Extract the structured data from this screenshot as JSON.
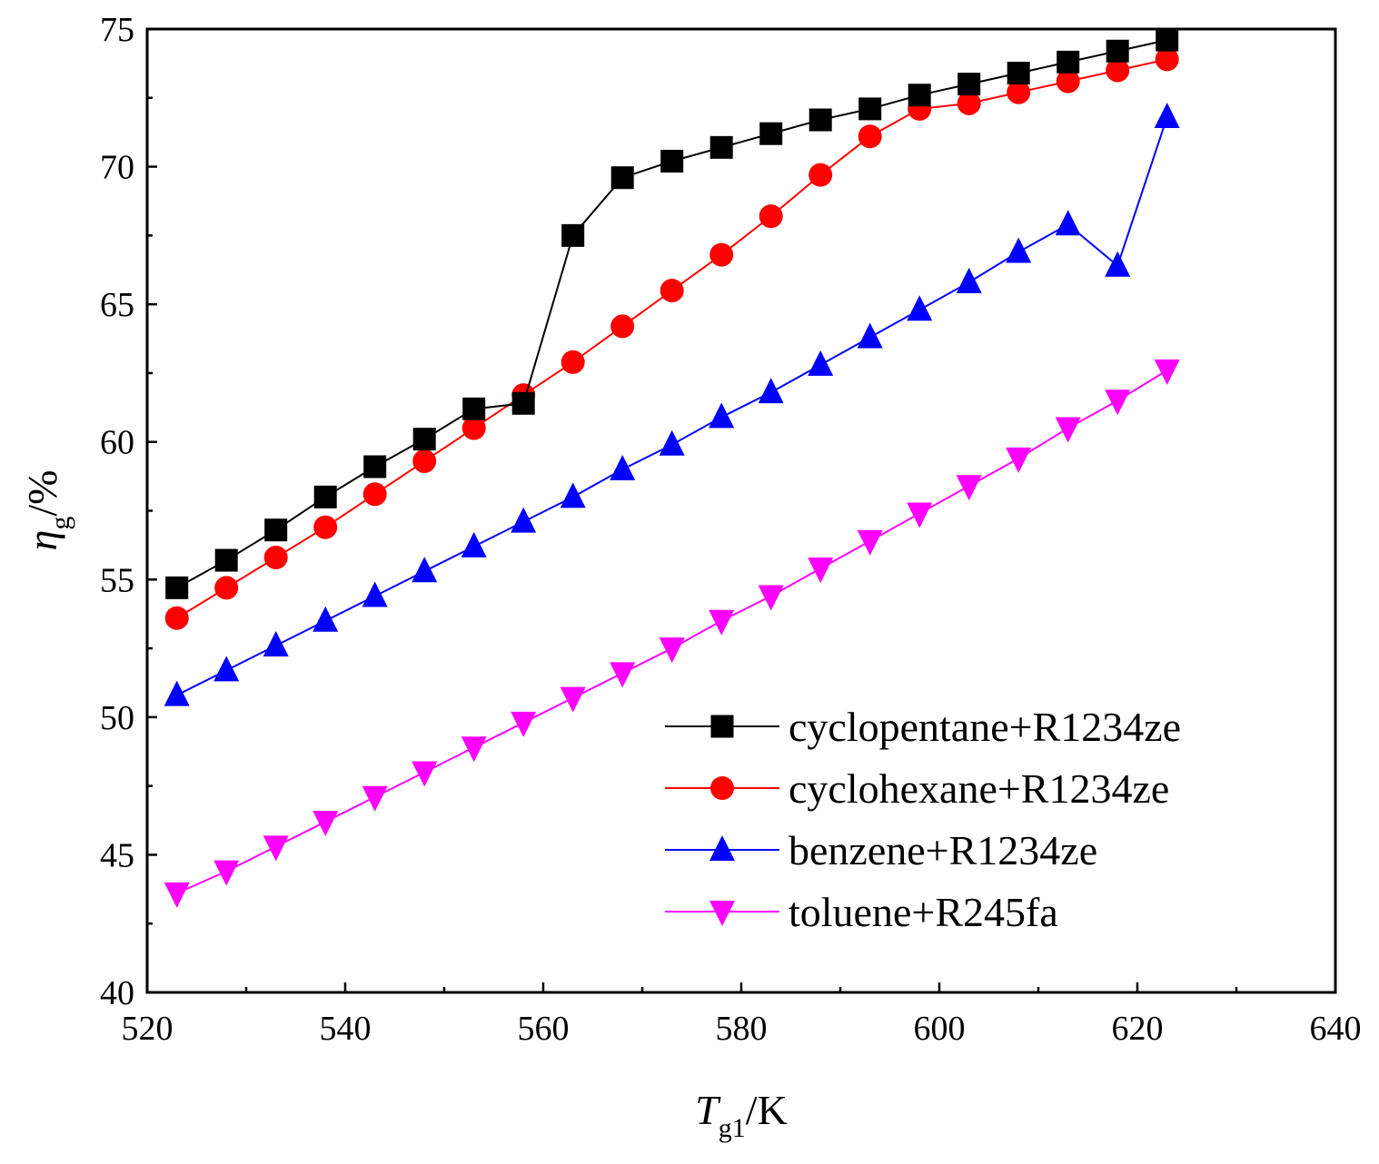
{
  "chart_data": {
    "type": "line",
    "title": "",
    "xlabel": {
      "main": "T",
      "sub": "g1",
      "suffix": "/K"
    },
    "ylabel": {
      "main": "η",
      "sub": "g",
      "suffix": "/%"
    },
    "xlim": [
      520,
      640
    ],
    "ylim": [
      40,
      75
    ],
    "xticks": [
      520,
      540,
      560,
      580,
      600,
      620,
      640
    ],
    "yticks": [
      40,
      45,
      50,
      55,
      60,
      65,
      70,
      75
    ],
    "x": [
      523,
      528,
      533,
      538,
      543,
      548,
      553,
      558,
      563,
      568,
      573,
      578,
      583,
      588,
      593,
      598,
      603,
      608,
      613,
      618,
      623
    ],
    "legend_position": "bottom-right",
    "series": [
      {
        "name": "cyclopentane+R1234ze",
        "color": "#000000",
        "marker": "square",
        "values": [
          54.7,
          55.7,
          56.8,
          58.0,
          59.1,
          60.1,
          61.2,
          61.4,
          67.5,
          69.6,
          70.2,
          70.7,
          71.2,
          71.7,
          72.1,
          72.6,
          73.0,
          73.4,
          73.8,
          74.2,
          74.6
        ]
      },
      {
        "name": "cyclohexane+R1234ze",
        "color": "#ff0000",
        "marker": "circle",
        "values": [
          53.6,
          54.7,
          55.8,
          56.9,
          58.1,
          59.3,
          60.5,
          61.7,
          62.9,
          64.2,
          65.5,
          66.8,
          68.2,
          69.7,
          71.1,
          72.1,
          72.3,
          72.7,
          73.1,
          73.5,
          73.9
        ]
      },
      {
        "name": "benzene+R1234ze",
        "color": "#0000ff",
        "marker": "triangle-up",
        "values": [
          50.8,
          51.7,
          52.6,
          53.5,
          54.4,
          55.3,
          56.2,
          57.1,
          58.0,
          59.0,
          59.9,
          60.9,
          61.8,
          62.8,
          63.8,
          64.8,
          65.8,
          66.9,
          67.9,
          66.4,
          71.8
        ]
      },
      {
        "name": "toluene+R245fa",
        "color": "#ff00ff",
        "marker": "triangle-down",
        "values": [
          43.6,
          44.4,
          45.3,
          46.2,
          47.1,
          48.0,
          48.9,
          49.8,
          50.7,
          51.6,
          52.5,
          53.5,
          54.4,
          55.4,
          56.4,
          57.4,
          58.4,
          59.4,
          60.5,
          61.5,
          62.6
        ]
      }
    ]
  }
}
